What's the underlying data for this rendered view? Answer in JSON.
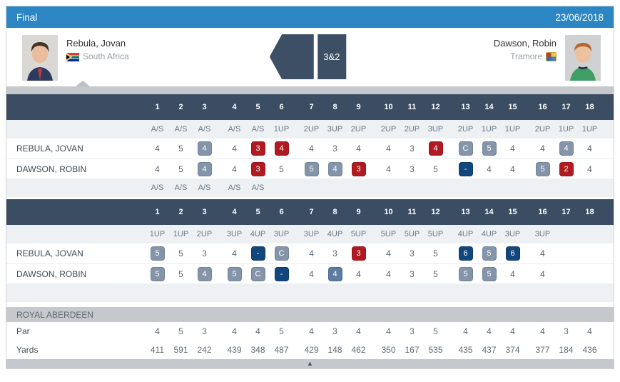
{
  "header": {
    "title": "Final",
    "date": "23/06/2018",
    "bar_color": "#2b86c3"
  },
  "players": {
    "home": {
      "name": "Rebula, Jovan",
      "club": "South Africa",
      "flag": "south-africa-flag"
    },
    "away": {
      "name": "Dawson, Robin",
      "club": "Tramore",
      "flag": "tramore-crest"
    }
  },
  "result": {
    "score": "3&2",
    "winner_side": "home"
  },
  "colors": {
    "birdie_badge": "#b11a21",
    "bogey_badge": "#8494a9",
    "double_badge": "#12477e",
    "slate_badge": "#5e7ba1",
    "table_header": "#3a4d63",
    "top_bar": "#2b86c3"
  },
  "holes": [
    "1",
    "2",
    "3",
    "4",
    "5",
    "6",
    "7",
    "8",
    "9",
    "10",
    "11",
    "12",
    "13",
    "14",
    "15",
    "16",
    "17",
    "18"
  ],
  "rounds": [
    {
      "name": "round-1",
      "status_top": [
        "A/S",
        "A/S",
        "A/S",
        "A/S",
        "A/S",
        "1UP",
        "2UP",
        "3UP",
        "2UP",
        "2UP",
        "2UP",
        "3UP",
        "2UP",
        "1UP",
        "1UP",
        "2UP",
        "1UP",
        "1UP"
      ],
      "status_bottom": [
        "A/S",
        "A/S",
        "A/S",
        "A/S",
        "A/S",
        "",
        "",
        "",
        "",
        "",
        "",
        "",
        "",
        "",
        "",
        "",
        "",
        ""
      ],
      "players": [
        {
          "name": "REBULA, JOVAN",
          "cells": [
            [
              "4",
              ""
            ],
            [
              "5",
              ""
            ],
            [
              "4",
              "gray"
            ],
            [
              "4",
              ""
            ],
            [
              "3",
              "red"
            ],
            [
              "4",
              "red"
            ],
            [
              "4",
              ""
            ],
            [
              "3",
              ""
            ],
            [
              "4",
              ""
            ],
            [
              "4",
              ""
            ],
            [
              "3",
              ""
            ],
            [
              "4",
              "red"
            ],
            [
              "C",
              "gray"
            ],
            [
              "5",
              "gray"
            ],
            [
              "4",
              ""
            ],
            [
              "4",
              ""
            ],
            [
              "4",
              "gray"
            ],
            [
              "4",
              ""
            ]
          ]
        },
        {
          "name": "DAWSON, ROBIN",
          "cells": [
            [
              "4",
              ""
            ],
            [
              "5",
              ""
            ],
            [
              "4",
              "gray"
            ],
            [
              "4",
              ""
            ],
            [
              "3",
              "red"
            ],
            [
              "5",
              ""
            ],
            [
              "5",
              "gray"
            ],
            [
              "4",
              "gray"
            ],
            [
              "3",
              "red"
            ],
            [
              "4",
              ""
            ],
            [
              "3",
              ""
            ],
            [
              "5",
              ""
            ],
            [
              "-",
              "navy"
            ],
            [
              "4",
              ""
            ],
            [
              "4",
              ""
            ],
            [
              "5",
              "gray"
            ],
            [
              "2",
              "red"
            ],
            [
              "4",
              ""
            ]
          ]
        }
      ]
    },
    {
      "name": "round-2",
      "status_top": [
        "1UP",
        "1UP",
        "2UP",
        "3UP",
        "4UP",
        "3UP",
        "3UP",
        "4UP",
        "5UP",
        "5UP",
        "5UP",
        "5UP",
        "4UP",
        "4UP",
        "3UP",
        "3UP",
        "",
        ""
      ],
      "status_bottom": [
        "",
        "",
        "",
        "",
        "",
        "",
        "",
        "",
        "",
        "",
        "",
        "",
        "",
        "",
        "",
        "",
        "",
        ""
      ],
      "players": [
        {
          "name": "REBULA, JOVAN",
          "cells": [
            [
              "5",
              "gray"
            ],
            [
              "5",
              ""
            ],
            [
              "3",
              ""
            ],
            [
              "4",
              ""
            ],
            [
              "-",
              "navy"
            ],
            [
              "C",
              "gray"
            ],
            [
              "4",
              ""
            ],
            [
              "3",
              ""
            ],
            [
              "3",
              "red"
            ],
            [
              "4",
              ""
            ],
            [
              "3",
              ""
            ],
            [
              "5",
              ""
            ],
            [
              "6",
              "navy"
            ],
            [
              "5",
              "gray"
            ],
            [
              "6",
              "navy"
            ],
            [
              "4",
              ""
            ],
            [
              "",
              ""
            ],
            [
              "",
              ""
            ]
          ]
        },
        {
          "name": "DAWSON, ROBIN",
          "cells": [
            [
              "5",
              "gray"
            ],
            [
              "5",
              ""
            ],
            [
              "4",
              "gray"
            ],
            [
              "5",
              "gray"
            ],
            [
              "C",
              "gray"
            ],
            [
              "-",
              "navy"
            ],
            [
              "4",
              ""
            ],
            [
              "4",
              "slate"
            ],
            [
              "4",
              ""
            ],
            [
              "4",
              ""
            ],
            [
              "3",
              ""
            ],
            [
              "5",
              ""
            ],
            [
              "5",
              "gray"
            ],
            [
              "5",
              "gray"
            ],
            [
              "4",
              ""
            ],
            [
              "4",
              ""
            ],
            [
              "",
              ""
            ],
            [
              "",
              ""
            ]
          ]
        }
      ]
    }
  ],
  "course": {
    "name": "ROYAL ABERDEEN",
    "par_label": "Par",
    "yards_label": "Yards",
    "par": [
      "4",
      "5",
      "3",
      "4",
      "4",
      "5",
      "4",
      "3",
      "4",
      "4",
      "3",
      "5",
      "4",
      "4",
      "4",
      "4",
      "3",
      "4"
    ],
    "yards": [
      "411",
      "591",
      "242",
      "439",
      "348",
      "487",
      "429",
      "148",
      "462",
      "350",
      "167",
      "535",
      "435",
      "437",
      "374",
      "377",
      "184",
      "436"
    ]
  },
  "footer": {
    "collapse_icon": "▲"
  }
}
